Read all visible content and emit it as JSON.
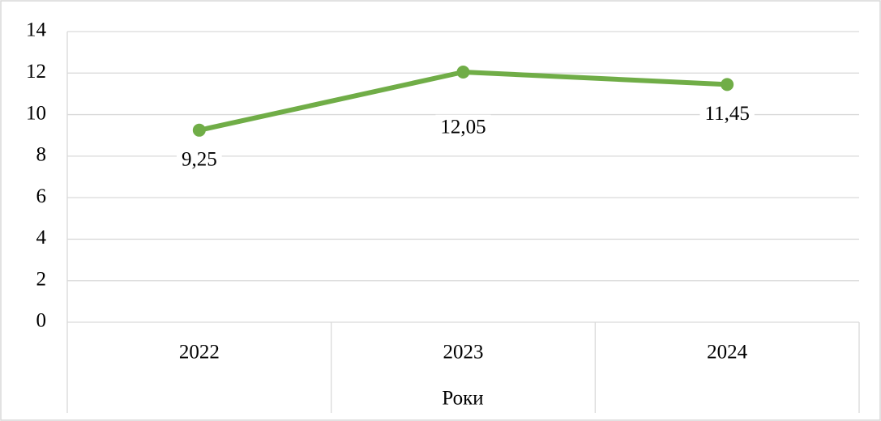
{
  "chart_data": {
    "type": "line",
    "x_label": "Роки",
    "categories": [
      "2022",
      "2023",
      "2024"
    ],
    "series": [
      {
        "color": "#70ad47",
        "values": [
          9.25,
          12.05,
          11.45
        ],
        "value_labels": [
          "9,25",
          "12,05",
          "11,45"
        ]
      }
    ],
    "ylim": [
      0,
      14
    ],
    "yticks": [
      0,
      2,
      4,
      6,
      8,
      10,
      12,
      14
    ],
    "grid": true
  }
}
